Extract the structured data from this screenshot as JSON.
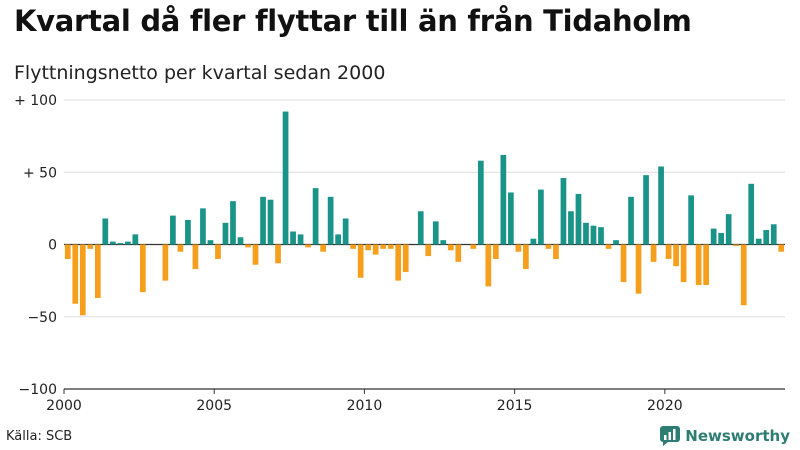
{
  "title": "Kvartal då fler flyttar till än från Tidaholm",
  "subtitle": "Flyttningsnetto per kvartal sedan 2000",
  "source": "Källa: SCB",
  "brand": "Newsworthy",
  "colors": {
    "positive": "#1a9488",
    "negative": "#f59f1c",
    "grid": "#dddddd",
    "axis": "#333333",
    "brand": "#2e7d73"
  },
  "chart_data": {
    "type": "bar",
    "x_start_year": 2000,
    "quarters_per_year": 4,
    "ylim": [
      -100,
      100
    ],
    "y_ticks": [
      {
        "value": 100,
        "label": "+ 100"
      },
      {
        "value": 50,
        "label": "+  50"
      },
      {
        "value": 0,
        "label": "0"
      },
      {
        "value": -50,
        "label": "−50"
      },
      {
        "value": -100,
        "label": "−100"
      }
    ],
    "x_ticks": [
      {
        "year": 2000,
        "label": "2000"
      },
      {
        "year": 2005,
        "label": "2005"
      },
      {
        "year": 2010,
        "label": "2010"
      },
      {
        "year": 2015,
        "label": "2015"
      },
      {
        "year": 2020,
        "label": "2020"
      }
    ],
    "values": [
      -10,
      -41,
      -49,
      -3,
      -37,
      18,
      2,
      1,
      2,
      7,
      -33,
      0,
      0,
      -25,
      20,
      -5,
      17,
      -17,
      25,
      3,
      -10,
      15,
      30,
      5,
      -2,
      -14,
      33,
      31,
      -13,
      92,
      9,
      7,
      -2,
      39,
      -5,
      33,
      7,
      18,
      -3,
      -23,
      -4,
      -7,
      -3,
      -3,
      -25,
      -19,
      0,
      23,
      -8,
      16,
      3,
      -4,
      -12,
      0,
      -3,
      58,
      -29,
      -10,
      62,
      36,
      -5,
      -17,
      4,
      38,
      -3,
      -10,
      46,
      23,
      35,
      15,
      13,
      12,
      -3,
      3,
      -26,
      33,
      -34,
      48,
      -12,
      54,
      -10,
      -15,
      -26,
      34,
      -28,
      -28,
      11,
      8,
      21,
      -1,
      -42,
      42,
      4,
      10,
      14,
      -5
    ]
  }
}
